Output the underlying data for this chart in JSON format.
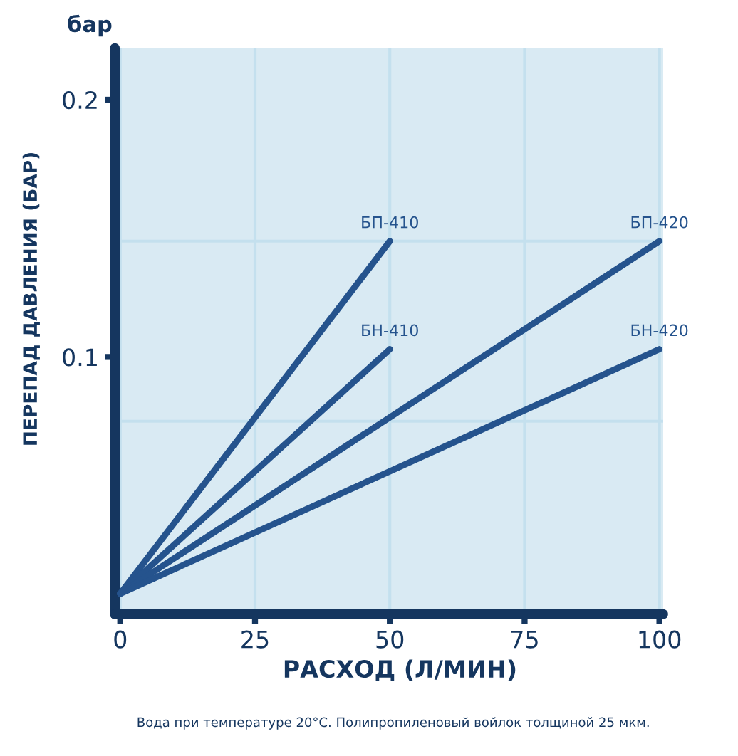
{
  "chart_data": {
    "type": "line",
    "xlabel": "РАСХОД (Л/МИН)",
    "ylabel": "ПЕРЕПАД ДАВЛЕНИЯ (БАР)",
    "annotations": [
      "бар",
      "Вода при температуре 20°C. Полипропиленовый войлок толщиной 25 мкм."
    ],
    "series": [
      {
        "name": "БП-410",
        "color": "#25538d",
        "x": [
          0,
          50
        ],
        "values": [
          0.008,
          0.145
        ]
      },
      {
        "name": "БН-410",
        "color": "#25538d",
        "x": [
          0,
          50
        ],
        "values": [
          0.008,
          0.103
        ]
      },
      {
        "name": "БП-420",
        "color": "#25538d",
        "x": [
          0,
          100
        ],
        "values": [
          0.008,
          0.145
        ]
      },
      {
        "name": "БН-420",
        "color": "#25538d",
        "x": [
          0,
          100
        ],
        "values": [
          0.008,
          0.103
        ]
      }
    ],
    "xlim": [
      -1,
      100.7
    ],
    "ylim": [
      0,
      0.22
    ],
    "xticks": [
      0,
      25,
      50,
      75,
      100
    ],
    "yticks": [
      0.1,
      0.2
    ],
    "grid": "x",
    "line_style": "solid",
    "ref_lines": [
      {
        "axis": "y",
        "value": 0.145,
        "color": "#c4e0ee"
      },
      {
        "axis": "y",
        "value": 0.075,
        "color": "#c4e0ee"
      }
    ]
  }
}
